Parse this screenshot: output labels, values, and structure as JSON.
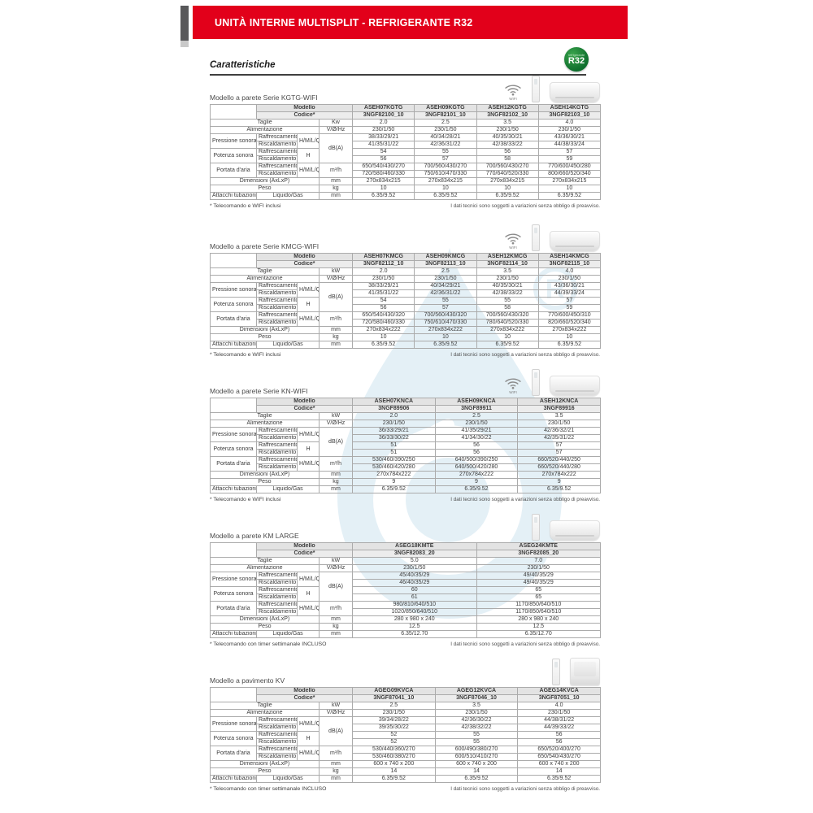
{
  "banner": {
    "title": "UNITÀ INTERNE MULTISPLIT - REFRIGERANTE R32"
  },
  "heading": "Caratteristiche",
  "r32_badge": {
    "small": "refrigerante",
    "big": "R32"
  },
  "colors": {
    "accent_red": "#e2001a",
    "model_red": "#cc2229",
    "badge_green": "#0e6e2d",
    "watermark_blue": "#cfe4f0"
  },
  "common": {
    "modello": "Modello",
    "codice": "Codice*",
    "taglie": "Taglie",
    "alimentazione": "Alimentazione",
    "pressione_sonora": "Pressione sonora",
    "potenza_sonora": "Potenza sonora",
    "portata_aria": "Portata d'aria",
    "dimensioni": "Dimensioni (AxLxP)",
    "peso": "Peso",
    "attacchi_tubazioni": "Attacchi tubazioni",
    "raffrescamento": "Raffrescamento",
    "riscaldamento": "Riscaldamento",
    "hmlq": "H/M/L/Q",
    "h": "H",
    "liquido_gas": "Liquido/Gas",
    "wifi_label": "WIFI",
    "right_note": "I dati tecnici sono soggetti a variazioni senza obbligo di preavviso."
  },
  "tables": [
    {
      "id": "kgtg-wifi",
      "title": "Modello a parete Serie KGTG-WIFI",
      "icons": [
        "wifi",
        "remote",
        "wall-unit"
      ],
      "units": {
        "taglie": "Kw",
        "alimentazione": "V/Ø/Hz",
        "pressione_potenza": "dB(A)",
        "portata": "m³/h",
        "dimensioni": "mm",
        "peso": "kg",
        "attacchi": "mm"
      },
      "models": [
        "ASEH07KGTG",
        "ASEH09KGTG",
        "ASEH12KGTG",
        "ASEH14KGTG"
      ],
      "codes": [
        "3NGF82100_10",
        "3NGF82101_10",
        "3NGF82102_10",
        "3NGF82103_10"
      ],
      "taglie": [
        "2.0",
        "2.5",
        "3.5",
        "4.0"
      ],
      "alimentazione": [
        "230/1/50",
        "230/1/50",
        "230/1/50",
        "230/1/50"
      ],
      "pressione_raffrescamento": [
        "38/33/29/21",
        "40/34/28/21",
        "40/35/30/21",
        "43/36/30/21"
      ],
      "pressione_riscaldamento": [
        "41/35/31/22",
        "42/36/31/22",
        "42/38/33/22",
        "44/38/33/24"
      ],
      "potenza_raffrescamento": [
        "54",
        "55",
        "56",
        "57"
      ],
      "potenza_riscaldamento": [
        "56",
        "57",
        "58",
        "59"
      ],
      "portata_raffrescamento": [
        "650/540/430/270",
        "700/560/430/270",
        "700/560/430/270",
        "770/600/450/280"
      ],
      "portata_riscaldamento": [
        "720/580/460/330",
        "750/610/470/330",
        "770/640/520/330",
        "800/660/520/340"
      ],
      "dimensioni": [
        "270x834x215",
        "270x834x215",
        "270x834x215",
        "270x834x215"
      ],
      "peso": [
        "10",
        "10",
        "10",
        "10"
      ],
      "attacchi": [
        "6.35/9.52",
        "6.35/9.52",
        "6.35/9.52",
        "6.35/9.52"
      ],
      "footnote": "* Telecomando e WIFI inclusi"
    },
    {
      "id": "kmcg-wifi",
      "title": "Modello a parete Serie KMCG-WIFI",
      "icons": [
        "wifi",
        "remote",
        "wall-unit"
      ],
      "units": {
        "taglie": "kW",
        "alimentazione": "V/Ø/Hz",
        "pressione_potenza": "dB(A)",
        "portata": "m³/h",
        "dimensioni": "mm",
        "peso": "kg",
        "attacchi": "mm"
      },
      "models": [
        "ASEH07KMCG",
        "ASEH09KMCG",
        "ASEH12KMCG",
        "ASEH14KMCG"
      ],
      "codes": [
        "3NGF82112_10",
        "3NGF82113_10",
        "3NGF82114_10",
        "3NGF82115_10"
      ],
      "taglie": [
        "2.0",
        "2.5",
        "3.5",
        "4.0"
      ],
      "alimentazione": [
        "230/1/50",
        "230/1/50",
        "230/1/50",
        "230/1/50"
      ],
      "pressione_raffrescamento": [
        "38/33/29/21",
        "40/34/29/21",
        "40/35/30/21",
        "43/36/30/21"
      ],
      "pressione_riscaldamento": [
        "41/35/31/22",
        "42/36/31/22",
        "42/38/33/22",
        "44/39/33/24"
      ],
      "potenza_raffrescamento": [
        "54",
        "55",
        "55",
        "57"
      ],
      "potenza_riscaldamento": [
        "56",
        "57",
        "58",
        "59"
      ],
      "portata_raffrescamento": [
        "650/540/430/320",
        "700/560/430/320",
        "700/560/430/320",
        "770/600/450/310"
      ],
      "portata_riscaldamento": [
        "720/580/460/330",
        "750/610/470/330",
        "780/640/520/330",
        "820/660/520/340"
      ],
      "dimensioni": [
        "270x834x222",
        "270x834x222",
        "270x834x222",
        "270x834x222"
      ],
      "peso": [
        "10",
        "10",
        "10",
        "10"
      ],
      "attacchi": [
        "6.35/9.52",
        "6.35/9.52",
        "6.35/9.52",
        "6.35/9.52"
      ],
      "footnote": "* Telecomando e WIFI inclusi"
    },
    {
      "id": "kn-wifi",
      "title": "Modello a parete Serie KN-WIFI",
      "icons": [
        "wifi",
        "remote",
        "wall-unit"
      ],
      "units": {
        "taglie": "kW",
        "alimentazione": "V/Ø/Hz",
        "pressione_potenza": "dB(A)",
        "portata": "m³/h",
        "dimensioni": "mm",
        "peso": "kg",
        "attacchi": "mm"
      },
      "models": [
        "ASEH07KNCA",
        "ASEH09KNCA",
        "ASEH12KNCA"
      ],
      "codes": [
        "3NGF89906",
        "3NGF89911",
        "3NGF89916"
      ],
      "taglie": [
        "2.0",
        "2.5",
        "3.5"
      ],
      "alimentazione": [
        "230/1/50",
        "230/1/50",
        "230/1/50"
      ],
      "pressione_raffrescamento": [
        "36/33/29/21",
        "41/35/29/21",
        "42/36/32/21"
      ],
      "pressione_riscaldamento": [
        "36/33/30/22",
        "41/34/30/22",
        "42/35/31/22"
      ],
      "potenza_raffrescamento": [
        "51",
        "56",
        "57"
      ],
      "potenza_riscaldamento": [
        "51",
        "56",
        "57"
      ],
      "portata_raffrescamento": [
        "530/460/390/250",
        "640/500/390/250",
        "660/520/440/250"
      ],
      "portata_riscaldamento": [
        "530/460/420/280",
        "640/500/420/280",
        "660/520/440/280"
      ],
      "dimensioni": [
        "270x784x222",
        "270x784x222",
        "270x784x222"
      ],
      "peso": [
        "9",
        "9",
        "9"
      ],
      "attacchi": [
        "6.35/9.52",
        "6.35/9.52",
        "6.35/9.52"
      ],
      "footnote": "* Telecomando e WIFI inclusi"
    },
    {
      "id": "km-large",
      "title": "Modello a parete KM LARGE",
      "icons": [
        "remote",
        "wall-unit"
      ],
      "units": {
        "taglie": "kW",
        "alimentazione": "V/Ø/Hz",
        "pressione_potenza": "dB(A)",
        "portata": "m³/h",
        "dimensioni": "mm",
        "peso": "kg",
        "attacchi": "mm"
      },
      "models": [
        "ASEG18KMTE",
        "ASEG24KMTE"
      ],
      "codes": [
        "3NGF82083_20",
        "3NGF82085_20"
      ],
      "taglie": [
        "5.0",
        "7.0"
      ],
      "alimentazione": [
        "230/1/50",
        "230/1/50"
      ],
      "pressione_raffrescamento": [
        "45/40/35/29",
        "49/40/35/29"
      ],
      "pressione_riscaldamento": [
        "46/40/35/29",
        "49/40/35/29"
      ],
      "potenza_raffrescamento": [
        "60",
        "65"
      ],
      "potenza_riscaldamento": [
        "61",
        "65"
      ],
      "portata_raffrescamento": [
        "980/810/640/510",
        "1170/850/640/510"
      ],
      "portata_riscaldamento": [
        "1020/850/640/510",
        "1170/850/640/510"
      ],
      "dimensioni": [
        "280 x 980 x 240",
        "280 x 980 x 240"
      ],
      "peso": [
        "12.5",
        "12.5"
      ],
      "attacchi": [
        "6.35/12.70",
        "6.35/12.70"
      ],
      "footnote": "* Telecomando con timer settimanale INCLUSO"
    },
    {
      "id": "kv",
      "title": "Modello a pavimento KV",
      "icons": [
        "remote",
        "floor-unit"
      ],
      "units": {
        "taglie": "kW",
        "alimentazione": "V/Ø/Hz",
        "pressione_potenza": "dB(A)",
        "portata": "m³/h",
        "dimensioni": "mm",
        "peso": "kg",
        "attacchi": "mm"
      },
      "models": [
        "AGEG09KVCA",
        "AGEG12KVCA",
        "AGEG14KVCA"
      ],
      "codes": [
        "3NGF87041_10",
        "3NGF87046_10",
        "3NGF87051_10"
      ],
      "taglie": [
        "2.5",
        "3.5",
        "4.0"
      ],
      "alimentazione": [
        "230/1/50",
        "230/1/50",
        "230/1/50"
      ],
      "pressione_raffrescamento": [
        "39/34/28/22",
        "42/36/30/22",
        "44/38/31/22"
      ],
      "pressione_riscaldamento": [
        "39/35/30/22",
        "42/38/32/22",
        "44/39/33/22"
      ],
      "potenza_raffrescamento": [
        "52",
        "55",
        "56"
      ],
      "potenza_riscaldamento": [
        "52",
        "55",
        "56"
      ],
      "portata_raffrescamento": [
        "530/440/360/270",
        "600/490/380/270",
        "650/520/400/270"
      ],
      "portata_riscaldamento": [
        "530/460/380/270",
        "600/510/410/270",
        "650/540/430/270"
      ],
      "dimensioni": [
        "600 x 740 x 200",
        "600 x 740 x 200",
        "600 x 740 x 200"
      ],
      "peso": [
        "14",
        "14",
        "14"
      ],
      "attacchi": [
        "6.35/9.52",
        "6.35/9.52",
        "6.35/9.52"
      ],
      "footnote": "* Telecomando con timer settimanale INCLUSO"
    }
  ]
}
